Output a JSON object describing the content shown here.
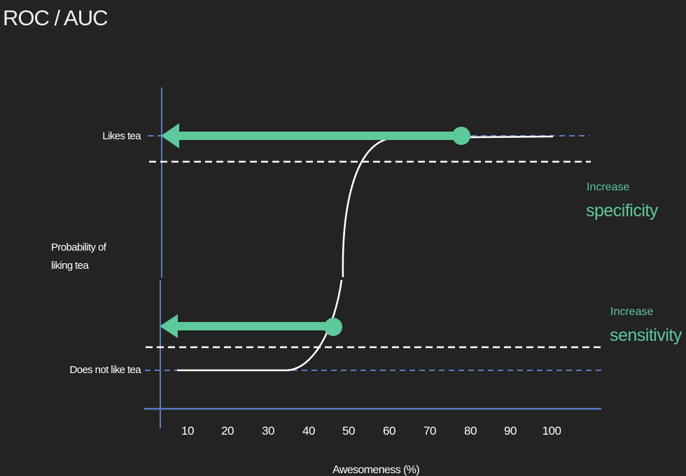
{
  "title": "ROC / AUC",
  "y_axis": {
    "label_line1": "Probability of",
    "label_line2": "liking tea",
    "top_label": "Likes tea",
    "bottom_label": "Does not like tea"
  },
  "x_axis": {
    "label": "Awesomeness (%)",
    "ticks": [
      "10",
      "20",
      "30",
      "40",
      "50",
      "60",
      "70",
      "80",
      "90",
      "100"
    ]
  },
  "annotations": {
    "specificity": {
      "small": "Increase",
      "big": "specificity"
    },
    "sensitivity": {
      "small": "Increase",
      "big": "sensitivity"
    }
  },
  "colors": {
    "background": "#232323",
    "axis": "#5b7bc4",
    "accent_green": "#5ec99a",
    "curve": "#ffffff"
  }
}
